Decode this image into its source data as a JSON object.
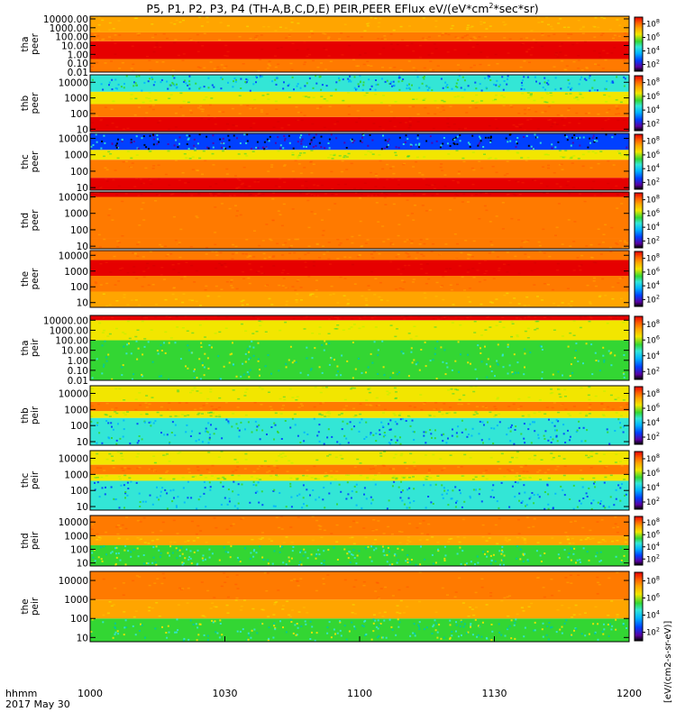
{
  "chart_data": {
    "type": "heatmap",
    "title": "P5, P1, P2, P3, P4 (TH-A,B,C,D,E) PEIR,PEER EFlux eV/(eV*cm^2*sec*sr)",
    "title_parts": {
      "before_sup": "P5, P1, P2, P3, P4 (TH-A,B,C,D,E) PEIR,PEER EFlux eV/(eV*cm",
      "sup": "2",
      "after_sup": "*sec*sr)"
    },
    "x_label_top": "hhmm",
    "x_label_bottom": "2017 May 30",
    "x_ticks": [
      "1000",
      "1030",
      "1100",
      "1130",
      "1200"
    ],
    "x_range": [
      "10:00",
      "12:00"
    ],
    "y_scale": "log",
    "z_scale": "log",
    "colorbar_ticks": [
      "10",
      "10",
      "10",
      "10"
    ],
    "colorbar_exponents": [
      "8",
      "6",
      "4",
      "2"
    ],
    "colorbar_label": "[eV/(cm2-s-sr-eV)]",
    "panels": [
      {
        "probe_label": "tha",
        "type_label": "peer",
        "y_ticks": [
          "10000.00",
          "1000.00",
          "100.00",
          "10.00",
          "1.00",
          "0.10",
          "0.01"
        ],
        "y_range": [
          0.01,
          20000
        ],
        "bands": [
          {
            "energy_range": [
              0.01,
              0.3
            ],
            "level": "high"
          },
          {
            "energy_range": [
              0.3,
              30
            ],
            "level": "saturated"
          },
          {
            "energy_range": [
              30,
              300
            ],
            "level": "high"
          },
          {
            "energy_range": [
              300,
              20000
            ],
            "level": "medium-high"
          }
        ]
      },
      {
        "probe_label": "thb",
        "type_label": "peer",
        "y_ticks": [
          "10000",
          "1000",
          "100",
          "10"
        ],
        "y_range": [
          7,
          30000
        ],
        "bands": [
          {
            "energy_range": [
              7,
              60
            ],
            "level": "saturated"
          },
          {
            "energy_range": [
              60,
              400
            ],
            "level": "high"
          },
          {
            "energy_range": [
              400,
              2500
            ],
            "level": "medium"
          },
          {
            "energy_range": [
              2500,
              30000
            ],
            "level": "low-noisy"
          }
        ]
      },
      {
        "probe_label": "thc",
        "type_label": "peer",
        "y_ticks": [
          "10000",
          "1000",
          "100",
          "10"
        ],
        "y_range": [
          7,
          20000
        ],
        "bands": [
          {
            "energy_range": [
              7,
              40
            ],
            "level": "saturated"
          },
          {
            "energy_range": [
              40,
              500
            ],
            "level": "high"
          },
          {
            "energy_range": [
              500,
              2000
            ],
            "level": "medium"
          },
          {
            "energy_range": [
              2000,
              20000
            ],
            "level": "very-low-noisy"
          }
        ]
      },
      {
        "probe_label": "thd",
        "type_label": "peer",
        "y_ticks": [
          "10000",
          "1000",
          "100",
          "10"
        ],
        "y_range": [
          7,
          20000
        ],
        "bands": [
          {
            "energy_range": [
              7,
              30
            ],
            "level": "high"
          },
          {
            "energy_range": [
              30,
              10000
            ],
            "level": "high"
          },
          {
            "energy_range": [
              10000,
              20000
            ],
            "level": "saturated"
          }
        ]
      },
      {
        "probe_label": "the",
        "type_label": "peer",
        "y_ticks": [
          "10000",
          "1000",
          "100",
          "10"
        ],
        "y_range": [
          5,
          20000
        ],
        "bands": [
          {
            "energy_range": [
              5,
              50
            ],
            "level": "medium-high"
          },
          {
            "energy_range": [
              50,
              500
            ],
            "level": "high"
          },
          {
            "energy_range": [
              500,
              5000
            ],
            "level": "saturated"
          },
          {
            "energy_range": [
              5000,
              20000
            ],
            "level": "high"
          }
        ]
      },
      {
        "probe_label": "tha",
        "type_label": "peir",
        "y_ticks": [
          "10000.00",
          "1000.00",
          "100.00",
          "10.00",
          "1.00",
          "0.10",
          "0.01"
        ],
        "y_range": [
          0.01,
          30000
        ],
        "bands": [
          {
            "energy_range": [
              0.01,
              100
            ],
            "level": "medium-noisy"
          },
          {
            "energy_range": [
              100,
              10000
            ],
            "level": "medium"
          },
          {
            "energy_range": [
              10000,
              30000
            ],
            "level": "saturated"
          }
        ]
      },
      {
        "probe_label": "thb",
        "type_label": "peir",
        "y_ticks": [
          "10000",
          "1000",
          "100",
          "10"
        ],
        "y_range": [
          6,
          30000
        ],
        "bands": [
          {
            "energy_range": [
              6,
              300
            ],
            "level": "low-noisy"
          },
          {
            "energy_range": [
              300,
              800
            ],
            "level": "medium"
          },
          {
            "energy_range": [
              800,
              3000
            ],
            "level": "high"
          },
          {
            "energy_range": [
              3000,
              30000
            ],
            "level": "medium"
          }
        ]
      },
      {
        "probe_label": "thc",
        "type_label": "peir",
        "y_ticks": [
          "10000",
          "1000",
          "100",
          "10"
        ],
        "y_range": [
          6,
          30000
        ],
        "bands": [
          {
            "energy_range": [
              6,
              400
            ],
            "level": "low-noisy"
          },
          {
            "energy_range": [
              400,
              1000
            ],
            "level": "medium"
          },
          {
            "energy_range": [
              1000,
              4000
            ],
            "level": "high"
          },
          {
            "energy_range": [
              4000,
              30000
            ],
            "level": "medium"
          }
        ]
      },
      {
        "probe_label": "thd",
        "type_label": "peir",
        "y_ticks": [
          "10000",
          "1000",
          "100",
          "10"
        ],
        "y_range": [
          6,
          30000
        ],
        "bands": [
          {
            "energy_range": [
              6,
              200
            ],
            "level": "medium-noisy"
          },
          {
            "energy_range": [
              200,
              1000
            ],
            "level": "medium-high"
          },
          {
            "energy_range": [
              1000,
              30000
            ],
            "level": "high"
          }
        ]
      },
      {
        "probe_label": "the",
        "type_label": "peir",
        "y_ticks": [
          "10000",
          "1000",
          "100",
          "10"
        ],
        "y_range": [
          6,
          30000
        ],
        "bands": [
          {
            "energy_range": [
              6,
              100
            ],
            "level": "medium-noisy"
          },
          {
            "energy_range": [
              100,
              1000
            ],
            "level": "medium-high"
          },
          {
            "energy_range": [
              1000,
              30000
            ],
            "level": "high"
          }
        ]
      }
    ]
  },
  "colors": {
    "saturated": "#e60000",
    "high": "#ff7a00",
    "orange": "#ffa500",
    "yellow": "#f2e600",
    "green": "#33d633",
    "cyan": "#33e6d6",
    "blue": "#0040ff",
    "purple": "#5a00a0",
    "black": "#000000"
  }
}
